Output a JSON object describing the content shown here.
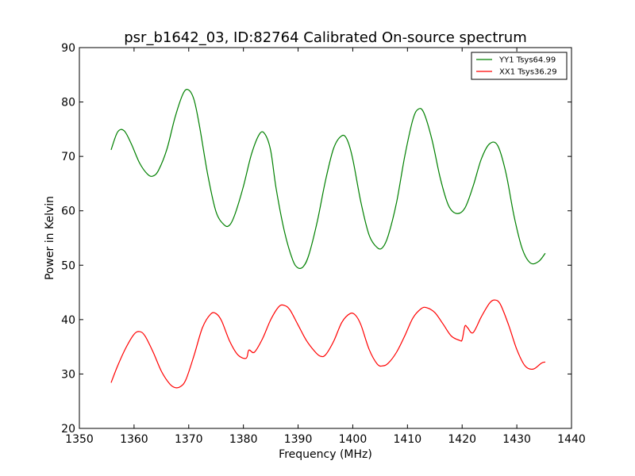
{
  "chart_data": {
    "type": "line",
    "title": "psr_b1642_03, ID:82764 Calibrated On-source spectrum",
    "xlabel": "Frequency (MHz)",
    "ylabel": "Power in Kelvin",
    "xlim": [
      1350,
      1440
    ],
    "ylim": [
      20,
      90
    ],
    "xticks": [
      "1350",
      "1360",
      "1370",
      "1380",
      "1390",
      "1400",
      "1410",
      "1420",
      "1430",
      "1440"
    ],
    "yticks": [
      "20",
      "30",
      "40",
      "50",
      "60",
      "70",
      "80",
      "90"
    ],
    "grid": false,
    "legend_position": "top-right",
    "series": [
      {
        "name": "YY1 Tsys64.99",
        "color": "#008000",
        "x": [
          1355.8,
          1357.0,
          1358.2,
          1359.5,
          1361.0,
          1362.5,
          1363.5,
          1364.5,
          1366.0,
          1367.5,
          1369.0,
          1370.0,
          1371.0,
          1372.0,
          1373.5,
          1375.0,
          1376.5,
          1377.5,
          1378.5,
          1380.0,
          1381.5,
          1383.0,
          1384.0,
          1385.0,
          1386.0,
          1387.5,
          1389.0,
          1390.0,
          1391.0,
          1392.0,
          1393.5,
          1395.0,
          1396.5,
          1398.0,
          1399.0,
          1400.0,
          1401.5,
          1403.0,
          1404.5,
          1405.5,
          1406.5,
          1408.0,
          1409.5,
          1411.0,
          1412.0,
          1413.0,
          1414.5,
          1416.0,
          1417.5,
          1419.0,
          1420.5,
          1422.0,
          1423.5,
          1425.0,
          1426.5,
          1428.0,
          1429.5,
          1431.0,
          1432.5,
          1434.0,
          1435.2
        ],
        "y": [
          71.2,
          74.5,
          74.7,
          72.3,
          68.8,
          66.7,
          66.4,
          67.5,
          71.3,
          77.2,
          81.6,
          82.2,
          80.3,
          75.4,
          66.5,
          59.8,
          57.4,
          57.4,
          59.5,
          64.5,
          70.5,
          74.2,
          74.0,
          71.0,
          64.0,
          56.2,
          51.0,
          49.5,
          49.8,
          52.0,
          58.0,
          65.5,
          71.5,
          73.8,
          73.0,
          69.5,
          61.5,
          55.5,
          53.2,
          53.3,
          55.5,
          61.5,
          70.0,
          76.8,
          78.7,
          78.0,
          73.0,
          66.0,
          61.0,
          59.5,
          60.5,
          64.5,
          69.5,
          72.3,
          72.0,
          67.0,
          59.0,
          53.0,
          50.4,
          50.7,
          52.2
        ]
      },
      {
        "name": "XX1 Tsys36.29",
        "color": "#ff0000",
        "x": [
          1355.8,
          1357.0,
          1358.5,
          1360.0,
          1361.0,
          1362.0,
          1363.5,
          1365.0,
          1366.5,
          1367.5,
          1368.5,
          1369.5,
          1371.0,
          1372.5,
          1374.0,
          1375.0,
          1376.0,
          1377.5,
          1379.0,
          1380.5,
          1381.0,
          1382.0,
          1383.5,
          1385.0,
          1386.5,
          1387.5,
          1388.5,
          1390.0,
          1391.5,
          1393.0,
          1394.0,
          1395.0,
          1396.5,
          1398.0,
          1399.5,
          1400.5,
          1401.5,
          1403.0,
          1404.5,
          1405.5,
          1406.5,
          1408.0,
          1409.5,
          1411.0,
          1412.5,
          1413.5,
          1415.0,
          1416.5,
          1418.0,
          1419.5,
          1420.0,
          1420.5,
          1421.0,
          1422.0,
          1423.5,
          1425.0,
          1426.0,
          1427.0,
          1428.5,
          1430.0,
          1431.5,
          1433.0,
          1434.5,
          1435.2
        ],
        "y": [
          28.4,
          31.5,
          34.8,
          37.3,
          37.8,
          37.0,
          34.0,
          30.5,
          28.2,
          27.5,
          27.7,
          29.0,
          33.5,
          38.5,
          41.0,
          41.1,
          39.8,
          36.0,
          33.5,
          32.9,
          34.4,
          34.0,
          36.5,
          40.0,
          42.4,
          42.6,
          41.8,
          39.0,
          36.2,
          34.2,
          33.3,
          33.5,
          36.0,
          39.5,
          41.1,
          40.8,
          39.0,
          34.5,
          31.8,
          31.5,
          32.0,
          34.0,
          37.0,
          40.3,
          42.0,
          42.2,
          41.3,
          39.2,
          37.0,
          36.2,
          36.3,
          38.8,
          38.5,
          37.6,
          40.5,
          43.0,
          43.6,
          42.8,
          39.0,
          34.5,
          31.5,
          30.9,
          32.0,
          32.2
        ]
      }
    ]
  }
}
